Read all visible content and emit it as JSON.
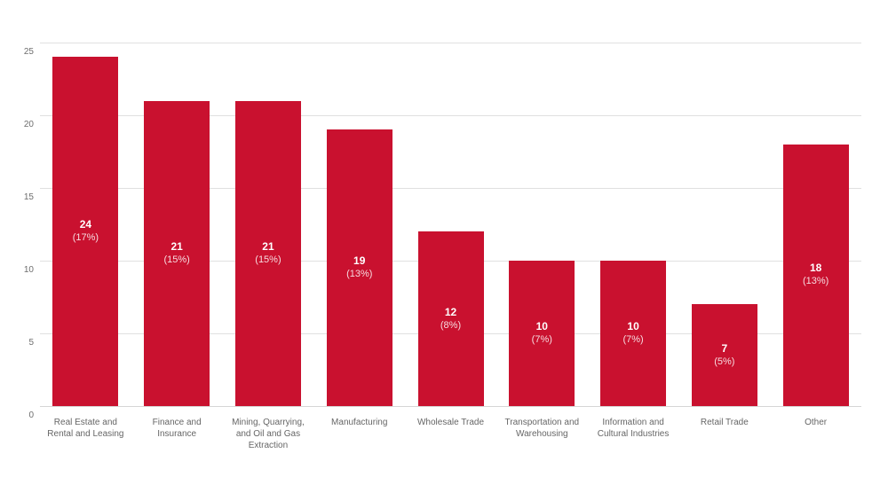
{
  "chart_data": {
    "type": "bar",
    "title": "",
    "categories": [
      "Real Estate and Rental and Leasing",
      "Finance and Insurance",
      "Mining, Quarrying, and Oil and Gas Extraction",
      "Manufacturing",
      "Wholesale Trade",
      "Transportation and Warehousing",
      "Information and Cultural Industries",
      "Retail Trade",
      "Other"
    ],
    "values": [
      24,
      21,
      21,
      19,
      12,
      10,
      10,
      7,
      18
    ],
    "value_labels": [
      "24",
      "21",
      "21",
      "19",
      "12",
      "10",
      "10",
      "7",
      "18"
    ],
    "percent_labels": [
      "(17%)",
      "(15%)",
      "(15%)",
      "(13%)",
      "(8%)",
      "(7%)",
      "(7%)",
      "(5%)",
      "(13%)"
    ],
    "xlabel": "",
    "ylabel": "",
    "ylim": [
      0,
      25
    ],
    "y_tick_labels_desc": [
      "25",
      "20",
      "15",
      "10",
      "5",
      "0"
    ],
    "grid": "horizontal",
    "legend": "none",
    "bar_color": "#c9112f",
    "gridline_color": "#e0e0e0",
    "axis_text_color": "#6d6d6d",
    "category_text_color": "#666666",
    "value_text_color": "#ffffff"
  }
}
